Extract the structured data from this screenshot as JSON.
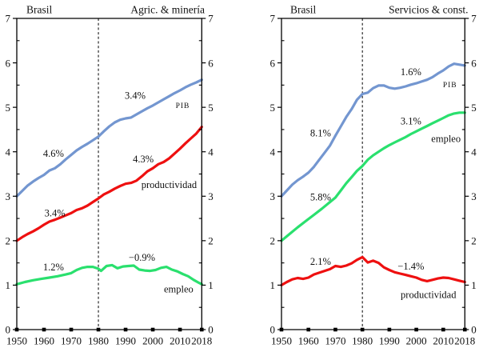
{
  "page": {
    "background": "#ffffff"
  },
  "chart_data": [
    {
      "type": "line",
      "title_left": "Brasil",
      "title_right": "Agric. & minería",
      "xlabel": "",
      "ylabel": "",
      "xlim": [
        1950,
        2018
      ],
      "ylim": [
        0,
        7
      ],
      "xticks": [
        1950,
        1960,
        1970,
        1980,
        1990,
        2000,
        2010,
        2018
      ],
      "yticks": [
        0,
        1,
        2,
        3,
        4,
        5,
        6,
        7
      ],
      "y_minor_step": 0.5,
      "grid": false,
      "legend_position": "none",
      "break_x": 1980,
      "axis_color": "#000000",
      "series": [
        {
          "name": "PIB",
          "color": "#7396d0",
          "x": [
            1950,
            1952,
            1954,
            1956,
            1958,
            1960,
            1962,
            1964,
            1966,
            1968,
            1970,
            1972,
            1974,
            1976,
            1978,
            1980,
            1982,
            1984,
            1986,
            1988,
            1990,
            1992,
            1994,
            1996,
            1998,
            2000,
            2002,
            2004,
            2006,
            2008,
            2010,
            2012,
            2014,
            2016,
            2018
          ],
          "y": [
            3.0,
            3.12,
            3.24,
            3.33,
            3.41,
            3.48,
            3.58,
            3.63,
            3.72,
            3.83,
            3.93,
            4.03,
            4.11,
            4.18,
            4.26,
            4.34,
            4.46,
            4.57,
            4.66,
            4.72,
            4.75,
            4.77,
            4.84,
            4.91,
            4.98,
            5.04,
            5.11,
            5.18,
            5.25,
            5.32,
            5.38,
            5.45,
            5.51,
            5.56,
            5.62
          ]
        },
        {
          "name": "productividad",
          "color": "#ee1010",
          "x": [
            1950,
            1952,
            1954,
            1956,
            1958,
            1960,
            1962,
            1964,
            1966,
            1968,
            1970,
            1972,
            1974,
            1976,
            1978,
            1980,
            1982,
            1984,
            1986,
            1988,
            1990,
            1992,
            1994,
            1996,
            1998,
            2000,
            2002,
            2004,
            2006,
            2008,
            2010,
            2012,
            2014,
            2016,
            2018
          ],
          "y": [
            2.0,
            2.08,
            2.15,
            2.21,
            2.28,
            2.36,
            2.43,
            2.47,
            2.52,
            2.57,
            2.62,
            2.69,
            2.73,
            2.79,
            2.87,
            2.95,
            3.04,
            3.1,
            3.17,
            3.23,
            3.28,
            3.3,
            3.35,
            3.45,
            3.56,
            3.63,
            3.72,
            3.77,
            3.85,
            3.96,
            4.07,
            4.19,
            4.3,
            4.41,
            4.56
          ]
        },
        {
          "name": "empleo",
          "color": "#2ae06e",
          "x": [
            1950,
            1953,
            1956,
            1959,
            1962,
            1965,
            1968,
            1970,
            1972,
            1974,
            1976,
            1978,
            1980,
            1981,
            1983,
            1985,
            1987,
            1989,
            1991,
            1993,
            1995,
            1997,
            1999,
            2001,
            2003,
            2005,
            2007,
            2009,
            2011,
            2013,
            2015,
            2017,
            2018
          ],
          "y": [
            1.02,
            1.07,
            1.11,
            1.14,
            1.17,
            1.2,
            1.24,
            1.27,
            1.34,
            1.39,
            1.41,
            1.41,
            1.37,
            1.32,
            1.43,
            1.45,
            1.38,
            1.42,
            1.43,
            1.44,
            1.35,
            1.33,
            1.32,
            1.34,
            1.39,
            1.41,
            1.35,
            1.31,
            1.25,
            1.2,
            1.12,
            1.05,
            1.02
          ]
        }
      ],
      "annotations": [
        {
          "text": "4.6%",
          "x": 1963.5,
          "y": 3.97
        },
        {
          "text": "3.4%",
          "x": 1993.5,
          "y": 5.27
        },
        {
          "text": "PIB",
          "x": 2011,
          "y": 5.05,
          "small": true
        },
        {
          "text": "3.4%",
          "x": 1964,
          "y": 2.63
        },
        {
          "text": "4.3%",
          "x": 1996.5,
          "y": 3.84
        },
        {
          "text": "productividad",
          "x": 2006,
          "y": 3.27
        },
        {
          "text": "1.2%",
          "x": 1963.5,
          "y": 1.41
        },
        {
          "text": "−0.9%",
          "x": 1996,
          "y": 1.63
        },
        {
          "text": "empleo",
          "x": 2009.5,
          "y": 0.92
        }
      ]
    },
    {
      "type": "line",
      "title_left": "Brasil",
      "title_right": "Servicios & const.",
      "xlabel": "",
      "ylabel": "",
      "xlim": [
        1950,
        2018
      ],
      "ylim": [
        0,
        7
      ],
      "xticks": [
        1950,
        1960,
        1970,
        1980,
        1990,
        2000,
        2010,
        2018
      ],
      "yticks": [
        0,
        1,
        2,
        3,
        4,
        5,
        6,
        7
      ],
      "y_minor_step": 0.5,
      "grid": false,
      "legend_position": "none",
      "break_x": 1980,
      "axis_color": "#000000",
      "series": [
        {
          "name": "PIB",
          "color": "#7396d0",
          "x": [
            1950,
            1952,
            1954,
            1956,
            1958,
            1960,
            1962,
            1964,
            1966,
            1968,
            1970,
            1972,
            1974,
            1976,
            1978,
            1980,
            1982,
            1984,
            1986,
            1988,
            1990,
            1992,
            1994,
            1996,
            1998,
            2000,
            2002,
            2004,
            2006,
            2008,
            2010,
            2012,
            2014,
            2016,
            2018
          ],
          "y": [
            3.0,
            3.13,
            3.26,
            3.36,
            3.44,
            3.53,
            3.66,
            3.82,
            3.98,
            4.14,
            4.36,
            4.57,
            4.78,
            4.96,
            5.17,
            5.3,
            5.33,
            5.43,
            5.49,
            5.49,
            5.44,
            5.42,
            5.44,
            5.47,
            5.51,
            5.54,
            5.58,
            5.62,
            5.68,
            5.76,
            5.83,
            5.92,
            5.98,
            5.96,
            5.94
          ]
        },
        {
          "name": "empleo",
          "color": "#2ae06e",
          "x": [
            1950,
            1953,
            1956,
            1959,
            1962,
            1965,
            1968,
            1970,
            1972,
            1974,
            1976,
            1978,
            1980,
            1982,
            1984,
            1986,
            1988,
            1990,
            1992,
            1994,
            1996,
            1998,
            2000,
            2002,
            2004,
            2006,
            2008,
            2010,
            2012,
            2014,
            2016,
            2018
          ],
          "y": [
            2.0,
            2.15,
            2.3,
            2.44,
            2.58,
            2.72,
            2.87,
            2.97,
            3.13,
            3.29,
            3.43,
            3.57,
            3.68,
            3.82,
            3.92,
            4.0,
            4.08,
            4.15,
            4.21,
            4.27,
            4.33,
            4.4,
            4.46,
            4.52,
            4.58,
            4.64,
            4.7,
            4.76,
            4.82,
            4.86,
            4.88,
            4.88
          ]
        },
        {
          "name": "productividad",
          "color": "#ee1010",
          "x": [
            1950,
            1952,
            1954,
            1956,
            1958,
            1960,
            1962,
            1964,
            1966,
            1968,
            1970,
            1972,
            1974,
            1976,
            1978,
            1980,
            1982,
            1984,
            1986,
            1988,
            1990,
            1992,
            1994,
            1996,
            1998,
            2000,
            2002,
            2004,
            2006,
            2008,
            2010,
            2012,
            2014,
            2016,
            2018
          ],
          "y": [
            1.0,
            1.07,
            1.13,
            1.16,
            1.14,
            1.17,
            1.24,
            1.28,
            1.32,
            1.36,
            1.43,
            1.41,
            1.44,
            1.49,
            1.57,
            1.63,
            1.51,
            1.55,
            1.5,
            1.4,
            1.34,
            1.29,
            1.26,
            1.23,
            1.2,
            1.17,
            1.12,
            1.09,
            1.12,
            1.15,
            1.17,
            1.16,
            1.13,
            1.1,
            1.07
          ]
        }
      ],
      "annotations": [
        {
          "text": "8.1%",
          "x": 1964.5,
          "y": 4.43
        },
        {
          "text": "1.6%",
          "x": 1998,
          "y": 5.8
        },
        {
          "text": "PIB",
          "x": 2012.5,
          "y": 5.51,
          "small": true
        },
        {
          "text": "5.8%",
          "x": 1964.5,
          "y": 2.99
        },
        {
          "text": "3.1%",
          "x": 1998,
          "y": 4.7
        },
        {
          "text": "empleo",
          "x": 2011,
          "y": 4.3
        },
        {
          "text": "2.1%",
          "x": 1964.5,
          "y": 1.54
        },
        {
          "text": "−1.4%",
          "x": 1998,
          "y": 1.43
        },
        {
          "text": "productividad",
          "x": 2004.5,
          "y": 0.79
        }
      ]
    }
  ]
}
